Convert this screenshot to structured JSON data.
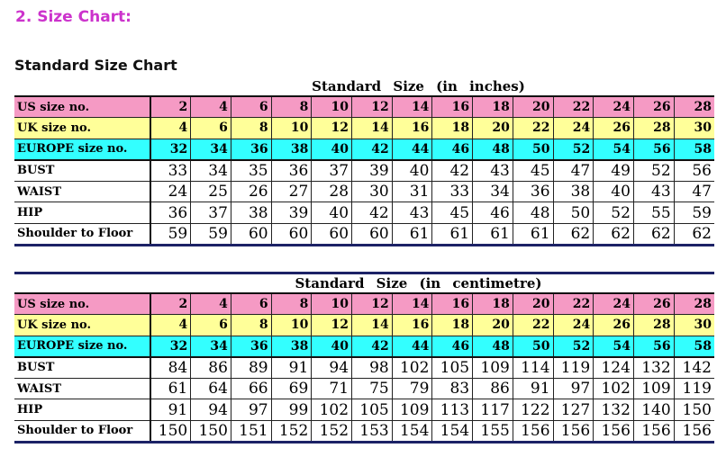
{
  "section_title": "2. Size Chart:",
  "subtitle": "Standard Size Chart",
  "colors": {
    "section_title": "#cc33cc",
    "us_row": "#f59ac4",
    "uk_row": "#ffff99",
    "europe_row": "#33ffff",
    "rule": "#1c2266"
  },
  "tables": [
    {
      "caption": "Standard  Size  (in inches)",
      "size_rows": [
        {
          "label": "US size no.",
          "values": [
            "2",
            "4",
            "6",
            "8",
            "10",
            "12",
            "14",
            "16",
            "18",
            "20",
            "22",
            "24",
            "26",
            "28"
          ]
        },
        {
          "label": "UK size no.",
          "values": [
            "4",
            "6",
            "8",
            "10",
            "12",
            "14",
            "16",
            "18",
            "20",
            "22",
            "24",
            "26",
            "28",
            "30"
          ]
        },
        {
          "label": "EUROPE size no.",
          "values": [
            "32",
            "34",
            "36",
            "38",
            "40",
            "42",
            "44",
            "46",
            "48",
            "50",
            "52",
            "54",
            "56",
            "58"
          ]
        }
      ],
      "measure_rows": [
        {
          "label": "BUST",
          "values": [
            "33",
            "34",
            "35",
            "36",
            "37",
            "39",
            "40",
            "42",
            "43",
            "45",
            "47",
            "49",
            "52",
            "56"
          ]
        },
        {
          "label": "WAIST",
          "values": [
            "24",
            "25",
            "26",
            "27",
            "28",
            "30",
            "31",
            "33",
            "34",
            "36",
            "38",
            "40",
            "43",
            "47"
          ]
        },
        {
          "label": "HIP",
          "values": [
            "36",
            "37",
            "38",
            "39",
            "40",
            "42",
            "43",
            "45",
            "46",
            "48",
            "50",
            "52",
            "55",
            "59"
          ]
        },
        {
          "label": "Shoulder to Floor",
          "values": [
            "59",
            "59",
            "60",
            "60",
            "60",
            "60",
            "61",
            "61",
            "61",
            "61",
            "62",
            "62",
            "62",
            "62"
          ]
        }
      ]
    },
    {
      "caption": "Standard  Size  (in centimetre)",
      "size_rows": [
        {
          "label": "US size no.",
          "values": [
            "2",
            "4",
            "6",
            "8",
            "10",
            "12",
            "14",
            "16",
            "18",
            "20",
            "22",
            "24",
            "26",
            "28"
          ]
        },
        {
          "label": "UK size no.",
          "values": [
            "4",
            "6",
            "8",
            "10",
            "12",
            "14",
            "16",
            "18",
            "20",
            "22",
            "24",
            "26",
            "28",
            "30"
          ]
        },
        {
          "label": "EUROPE size no.",
          "values": [
            "32",
            "34",
            "36",
            "38",
            "40",
            "42",
            "44",
            "46",
            "48",
            "50",
            "52",
            "54",
            "56",
            "58"
          ]
        }
      ],
      "measure_rows": [
        {
          "label": "BUST",
          "values": [
            "84",
            "86",
            "89",
            "91",
            "94",
            "98",
            "102",
            "105",
            "109",
            "114",
            "119",
            "124",
            "132",
            "142"
          ]
        },
        {
          "label": "WAIST",
          "values": [
            "61",
            "64",
            "66",
            "69",
            "71",
            "75",
            "79",
            "83",
            "86",
            "91",
            "97",
            "102",
            "109",
            "119"
          ]
        },
        {
          "label": "HIP",
          "values": [
            "91",
            "94",
            "97",
            "99",
            "102",
            "105",
            "109",
            "113",
            "117",
            "122",
            "127",
            "132",
            "140",
            "150"
          ]
        },
        {
          "label": "Shoulder to Floor",
          "values": [
            "150",
            "150",
            "151",
            "152",
            "152",
            "153",
            "154",
            "154",
            "155",
            "156",
            "156",
            "156",
            "156",
            "156"
          ]
        }
      ]
    }
  ]
}
